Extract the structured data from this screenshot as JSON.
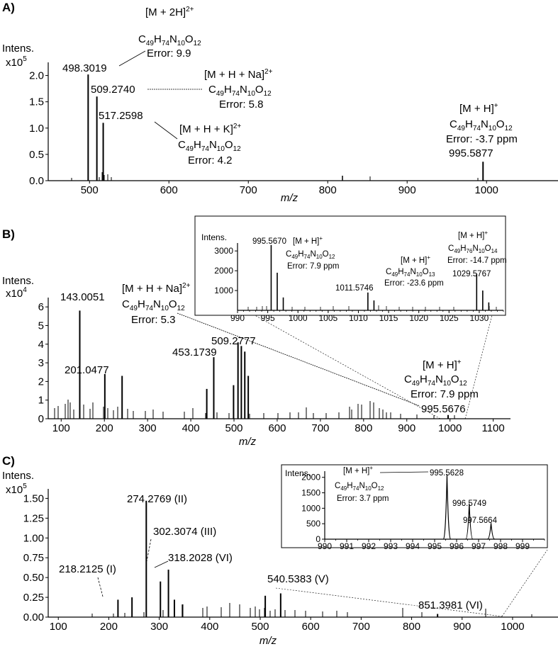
{
  "chart_data": [
    {
      "panel": "A)",
      "type": "bar",
      "xlabel": "m/z",
      "ylabel": "Intens.",
      "yscale": "x10",
      "yscale_exp": "5",
      "xlim": [
        448,
        1090
      ],
      "ylim": [
        0,
        2.25
      ],
      "x_ticks": [
        "500",
        "600",
        "700",
        "800",
        "900",
        "1000"
      ],
      "y_ticks": [
        "0.0",
        "0.5",
        "1.0",
        "1.5",
        "2.0"
      ],
      "peaks": [
        {
          "x": 498.3019,
          "y": 2.02
        },
        {
          "x": 509.274,
          "y": 1.6
        },
        {
          "x": 517.2598,
          "y": 1.1
        },
        {
          "x": 995.5877,
          "y": 0.36
        }
      ],
      "annotations": [
        {
          "mz": "498.3019",
          "ion": "[M + 2H]",
          "charge": "2+",
          "formula": "C49H74N10O12",
          "error": "Error: 9.9"
        },
        {
          "mz": "509.2740",
          "ion": "[M + H + Na]",
          "charge": "2+",
          "formula": "C49H74N10O12",
          "error": "Error: 5.8"
        },
        {
          "mz": "517.2598",
          "ion": "[M + H + K]",
          "charge": "2+",
          "formula": "C49H74N10O12",
          "error": "Error: 4.2"
        },
        {
          "mz": "995.5877",
          "ion": "[M + H]",
          "charge": "+",
          "formula": "C49H74N10O12",
          "error": "Error: -3.7 ppm"
        }
      ]
    },
    {
      "panel": "B)",
      "type": "bar",
      "xlabel": "m/z",
      "ylabel": "Intens.",
      "yscale": "x10",
      "yscale_exp": "4",
      "xlim": [
        70,
        1140
      ],
      "ylim": [
        0,
        6.5
      ],
      "x_ticks": [
        "100",
        "200",
        "300",
        "400",
        "500",
        "600",
        "700",
        "800",
        "900",
        "1000",
        "1100"
      ],
      "y_ticks": [
        "0",
        "1",
        "2",
        "3",
        "4",
        "5",
        "6"
      ],
      "peaks": [
        {
          "x": 143.0051,
          "y": 5.8
        },
        {
          "x": 201.0477,
          "y": 2.4
        },
        {
          "x": 241.0,
          "y": 2.3
        },
        {
          "x": 437.0,
          "y": 1.6
        },
        {
          "x": 453.1739,
          "y": 3.3
        },
        {
          "x": 499.0,
          "y": 1.8
        },
        {
          "x": 509.2777,
          "y": 4.1
        },
        {
          "x": 517.0,
          "y": 3.9
        },
        {
          "x": 525.0,
          "y": 3.6
        },
        {
          "x": 533.0,
          "y": 2.3
        },
        {
          "x": 995.5676,
          "y": 0.2
        }
      ],
      "annotations": [
        {
          "mz": "143.0051"
        },
        {
          "mz": "201.0477"
        },
        {
          "mz": "453.1739"
        },
        {
          "mz": "509.2777"
        },
        {
          "mz": "995.5676"
        },
        {
          "ion": "[M + H + Na]",
          "charge": "2+",
          "formula": "C49H74N10O12",
          "error": "Error: 5.3"
        },
        {
          "ion": "[M + H]",
          "charge": "+",
          "formula": "C49H74N10O12",
          "error": "Error: 7.9 ppm"
        }
      ],
      "inset": {
        "ylabel": "Intens.",
        "xlim": [
          990,
          1034
        ],
        "ylim": [
          0,
          3400
        ],
        "x_ticks": [
          "990",
          "995",
          "1000",
          "1005",
          "1010",
          "1015",
          "1020",
          "1025",
          "1030"
        ],
        "y_ticks": [
          "1000",
          "2000",
          "3000"
        ],
        "peaks": [
          {
            "x": 995.567,
            "y": 3300
          },
          {
            "x": 996.57,
            "y": 1900
          },
          {
            "x": 997.57,
            "y": 650
          },
          {
            "x": 1011.5746,
            "y": 900
          },
          {
            "x": 1012.58,
            "y": 500
          },
          {
            "x": 1029.5767,
            "y": 1850
          },
          {
            "x": 1030.58,
            "y": 1000
          },
          {
            "x": 1031.58,
            "y": 400
          }
        ],
        "annotations": [
          {
            "mz": "995.5670",
            "ion": "[M + H]",
            "charge": "+",
            "formula": "C49H74N10O12",
            "error": "Error: 7.9 ppm"
          },
          {
            "mz": "1011.5746",
            "ion": "[M + H]",
            "charge": "+",
            "formula": "C49H74N10O13",
            "error": "Error: -23.6  ppm"
          },
          {
            "mz": "1029.5767",
            "ion": "[M + H]",
            "charge": "+",
            "formula": "C49H76N10O14",
            "error": "Error: -14.7 ppm"
          }
        ]
      }
    },
    {
      "panel": "C)",
      "type": "bar",
      "xlabel": "m/z",
      "ylabel": "Intens.",
      "yscale": "x10",
      "yscale_exp": "5",
      "xlim": [
        80,
        1090
      ],
      "ylim": [
        0,
        1.62
      ],
      "x_ticks": [
        "100",
        "200",
        "300",
        "400",
        "500",
        "600",
        "700",
        "800",
        "900",
        "1000"
      ],
      "y_ticks": [
        "0.00",
        "0.25",
        "0.50",
        "0.75",
        "1.00",
        "1.25",
        "1.50"
      ],
      "peaks": [
        {
          "x": 218.2125,
          "y": 0.22
        },
        {
          "x": 246.0,
          "y": 0.25
        },
        {
          "x": 274.2769,
          "y": 1.47
        },
        {
          "x": 302.3074,
          "y": 0.45
        },
        {
          "x": 318.2028,
          "y": 0.6
        },
        {
          "x": 330.0,
          "y": 0.22
        },
        {
          "x": 346.0,
          "y": 0.16
        },
        {
          "x": 510.0,
          "y": 0.27
        },
        {
          "x": 540.5383,
          "y": 0.3
        },
        {
          "x": 851.3981,
          "y": 0.04
        }
      ],
      "annotations": [
        {
          "mz": "218.2125 (I)"
        },
        {
          "mz": "274.2769 (II)"
        },
        {
          "mz": "302.3074 (III)"
        },
        {
          "mz": "318.2028 (VI)"
        },
        {
          "mz": "540.5383 (V)"
        },
        {
          "mz": "851.3981 (VI)"
        }
      ],
      "inset": {
        "ylabel": "Intens.",
        "xlim": [
          990,
          1000
        ],
        "ylim": [
          0,
          2200
        ],
        "x_ticks": [
          "990",
          "991",
          "992",
          "993",
          "994",
          "995",
          "996",
          "997",
          "998",
          "999"
        ],
        "y_ticks": [
          "0",
          "500",
          "1000",
          "1500",
          "2000"
        ],
        "peaks": [
          {
            "x": 995.5628,
            "y": 2100
          },
          {
            "x": 996.5749,
            "y": 1150
          },
          {
            "x": 997.5664,
            "y": 520
          }
        ],
        "annotations": [
          {
            "mz": "995.5628",
            "ion": "[M + H]",
            "charge": "+",
            "formula": "C49H74N10O12",
            "error": "Error: 3.7 ppm"
          },
          {
            "mz": "996.5749"
          },
          {
            "mz": "997.5664"
          }
        ]
      }
    }
  ]
}
